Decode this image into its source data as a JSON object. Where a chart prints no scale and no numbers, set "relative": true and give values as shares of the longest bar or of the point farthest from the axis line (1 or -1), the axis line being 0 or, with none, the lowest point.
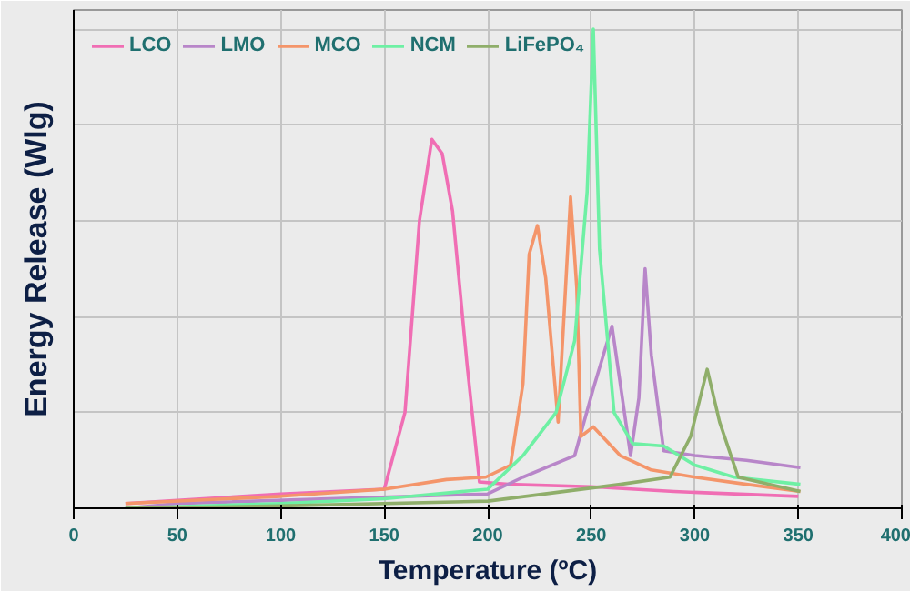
{
  "chart_data": {
    "type": "line",
    "xlabel": "Temperature (ºC)",
    "ylabel": "Energy Release (Wlg)",
    "relative": true,
    "xlim": [
      0,
      400
    ],
    "xticks": [
      0,
      50,
      100,
      150,
      200,
      250,
      300,
      350,
      400
    ],
    "grid": true,
    "legend": "top left",
    "line_style": "solid",
    "marker": "none",
    "series": [
      {
        "name": "LCO",
        "color": "#f06eb4",
        "x": [
          25,
          100,
          150,
          160,
          167,
          173,
          178,
          183,
          190,
          196,
          210,
          250,
          290,
          350
        ],
        "values": [
          0.01,
          0.03,
          0.04,
          0.2,
          0.6,
          0.77,
          0.74,
          0.62,
          0.3,
          0.055,
          0.05,
          0.045,
          0.035,
          0.025
        ]
      },
      {
        "name": "LMO",
        "color": "#b886c9",
        "x": [
          25,
          50,
          200,
          217,
          242,
          251,
          260,
          265,
          269,
          273,
          276,
          279,
          285,
          300,
          325,
          351
        ],
        "values": [
          0.0,
          0.01,
          0.03,
          0.065,
          0.11,
          0.25,
          0.38,
          0.23,
          0.11,
          0.23,
          0.5,
          0.32,
          0.12,
          0.11,
          0.1,
          0.085
        ]
      },
      {
        "name": "MCO",
        "color": "#f4956a",
        "x": [
          25,
          100,
          150,
          180,
          199,
          211,
          217,
          220,
          224,
          228,
          234,
          240,
          243,
          245,
          251,
          264,
          279,
          300,
          325,
          351
        ],
        "values": [
          0.01,
          0.025,
          0.04,
          0.06,
          0.065,
          0.09,
          0.26,
          0.53,
          0.59,
          0.48,
          0.18,
          0.65,
          0.46,
          0.15,
          0.17,
          0.11,
          0.08,
          0.065,
          0.05,
          0.035
        ]
      },
      {
        "name": "NCM",
        "color": "#6ef0a4",
        "x": [
          25,
          100,
          150,
          200,
          217,
          233,
          242,
          248,
          251,
          254,
          261,
          270,
          285,
          300,
          319,
          351
        ],
        "values": [
          0.0,
          0.01,
          0.02,
          0.04,
          0.11,
          0.2,
          0.35,
          0.66,
          1.0,
          0.54,
          0.2,
          0.135,
          0.13,
          0.09,
          0.065,
          0.05
        ]
      },
      {
        "name": "LiFePO₄",
        "color": "#8fae6a",
        "x": [
          25,
          100,
          200,
          264,
          288,
          298,
          306,
          312,
          321,
          351
        ],
        "values": [
          0.0,
          0.005,
          0.015,
          0.05,
          0.065,
          0.15,
          0.29,
          0.18,
          0.065,
          0.035
        ]
      }
    ]
  }
}
